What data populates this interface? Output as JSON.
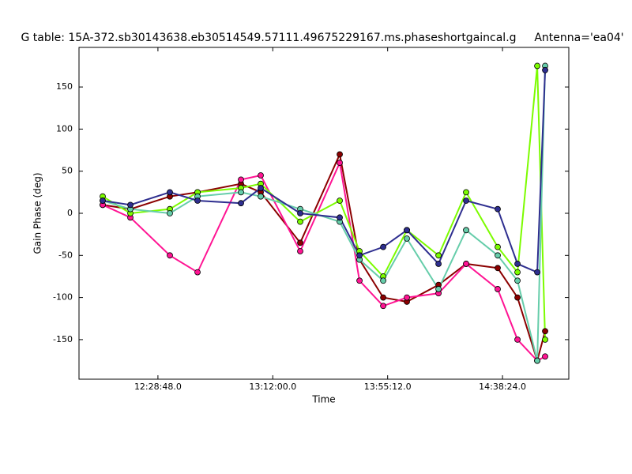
{
  "chart_data": {
    "type": "line",
    "title": "G table: 15A-372.sb30143638.eb30514549.57111.49675229167.ms.phaseshortgaincal.g",
    "annotation": "Antenna='ea04'",
    "xlabel": "Time",
    "ylabel": "Gain Phase (deg)",
    "x": [
      43682,
      44306,
      45197,
      45822,
      46802,
      47248,
      48139,
      49031,
      49477,
      50012,
      50546,
      51260,
      51883,
      52596,
      53042,
      53488,
      53666
    ],
    "series": [
      {
        "color": "#8b0000",
        "values": [
          10,
          5,
          20,
          25,
          35,
          25,
          -35,
          70,
          -55,
          -100,
          -105,
          -85,
          -60,
          -65,
          -100,
          -175,
          -140
        ]
      },
      {
        "color": "#ff1493",
        "values": [
          10,
          -5,
          -50,
          -70,
          40,
          45,
          -45,
          60,
          -80,
          -110,
          -100,
          -95,
          -60,
          -90,
          -150,
          -175,
          -170
        ]
      },
      {
        "color": "#7cfc00",
        "values": [
          20,
          0,
          5,
          25,
          30,
          35,
          -10,
          15,
          -45,
          -75,
          -20,
          -50,
          25,
          -40,
          -70,
          175,
          -150
        ]
      },
      {
        "color": "#66cdaa",
        "values": [
          15,
          5,
          0,
          20,
          25,
          20,
          5,
          -10,
          -55,
          -80,
          -30,
          -90,
          -20,
          -50,
          -80,
          -175,
          175
        ]
      },
      {
        "color": "#2e2e8f",
        "values": [
          15,
          10,
          25,
          15,
          12,
          30,
          0,
          -5,
          -50,
          -40,
          -20,
          -60,
          15,
          5,
          -60,
          -70,
          170
        ]
      }
    ],
    "xlim": [
      43147,
      54200
    ],
    "xticks": [
      {
        "value": 44928,
        "label": "12:28:48.0"
      },
      {
        "value": 47520,
        "label": "13:12:00.0"
      },
      {
        "value": 50112,
        "label": "13:55:12.0"
      },
      {
        "value": 52704,
        "label": "14:38:24.0"
      }
    ],
    "ylim": [
      -197,
      197
    ],
    "yticks": [
      -150,
      -100,
      -50,
      0,
      50,
      100,
      150
    ]
  }
}
